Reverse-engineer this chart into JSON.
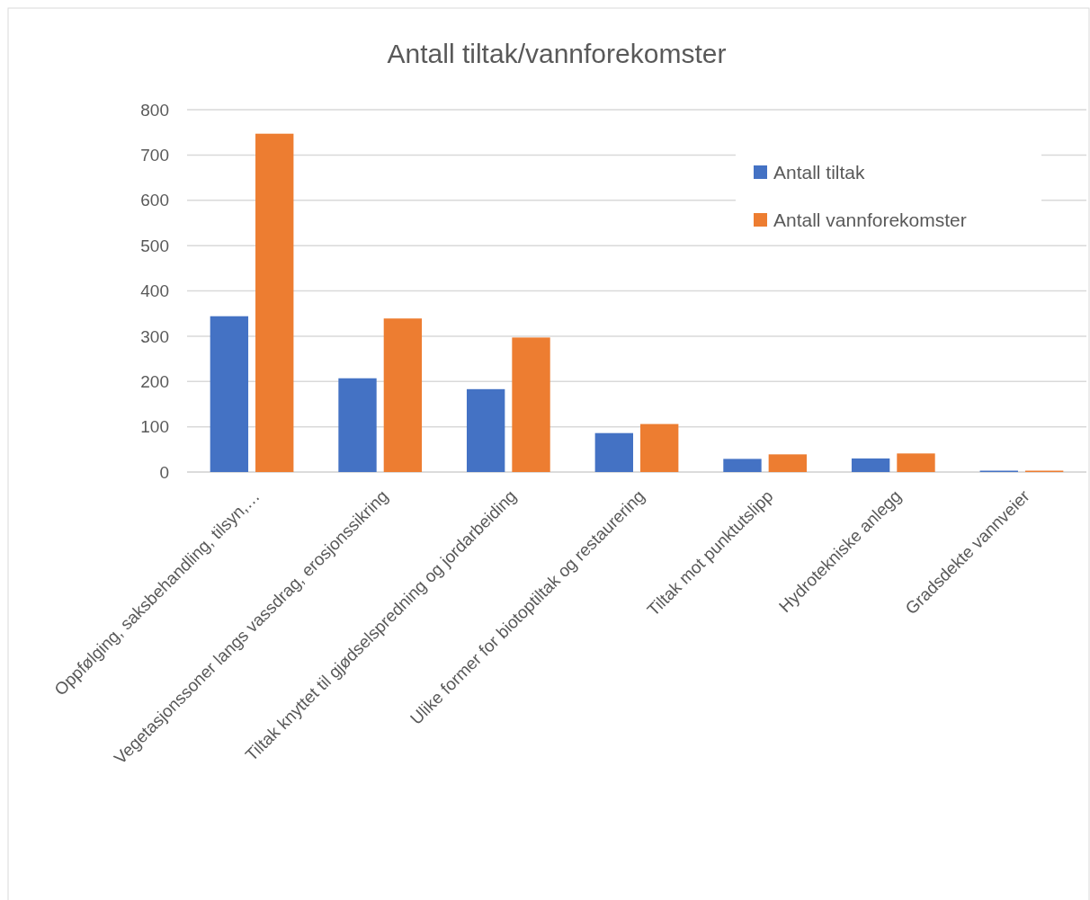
{
  "chart_data": {
    "type": "bar",
    "title": "Antall tiltak/vannforekomster",
    "categories": [
      "Oppfølging, saksbehandling, tilsyn,…",
      "Vegetasjonssoner langs vassdrag, erosjonssikring",
      "Tiltak knyttet til gjødselspredning og jordarbeiding",
      "Ulike former for biotoptiltak og restaurering",
      "Tiltak mot punktutslipp",
      "Hydrotekniske anlegg",
      "Gradsdekte vannveier"
    ],
    "series": [
      {
        "name": "Antall tiltak",
        "color": "#4472c4",
        "values": [
          344,
          207,
          183,
          86,
          29,
          30,
          3
        ]
      },
      {
        "name": "Antall vannforekomster",
        "color": "#ed7d31",
        "values": [
          747,
          339,
          297,
          106,
          39,
          41,
          3
        ]
      }
    ],
    "ylim": [
      0,
      800
    ],
    "yticks": [
      0,
      100,
      200,
      300,
      400,
      500,
      600,
      700,
      800
    ],
    "grid": "y",
    "legend": "top right"
  }
}
